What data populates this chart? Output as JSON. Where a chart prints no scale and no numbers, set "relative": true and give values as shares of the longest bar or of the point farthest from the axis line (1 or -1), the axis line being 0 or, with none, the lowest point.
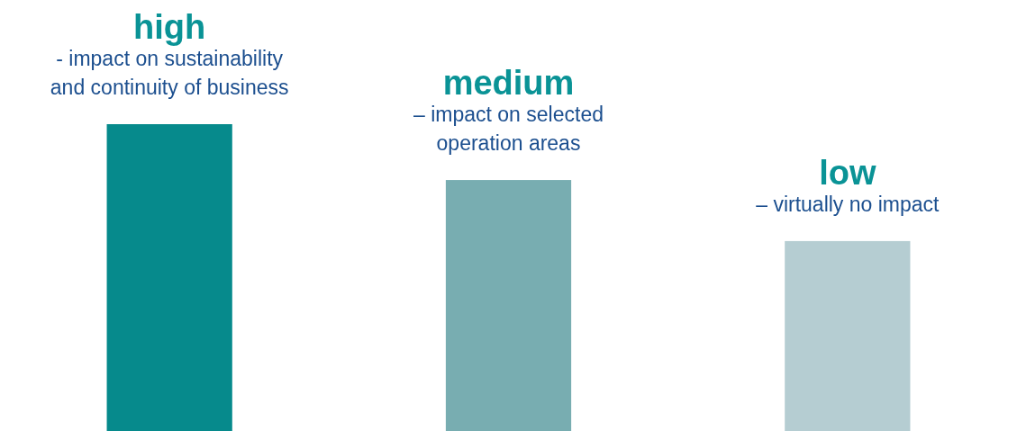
{
  "chart_data": {
    "type": "bar",
    "relative": true,
    "categories": [
      "high",
      "medium",
      "low"
    ],
    "values": [
      1,
      0.818,
      0.619
    ],
    "colors": [
      "#068a8c",
      "#78adb1",
      "#b5cdd2"
    ],
    "annotations": [
      {
        "text": "- impact on sustainability and continuity of business",
        "x": "high",
        "y": 1
      },
      {
        "text": "– impact on selected operation areas",
        "x": "medium",
        "y": 0.818
      },
      {
        "text": "– virtually no impact",
        "x": "low",
        "y": 0.619
      }
    ]
  }
}
